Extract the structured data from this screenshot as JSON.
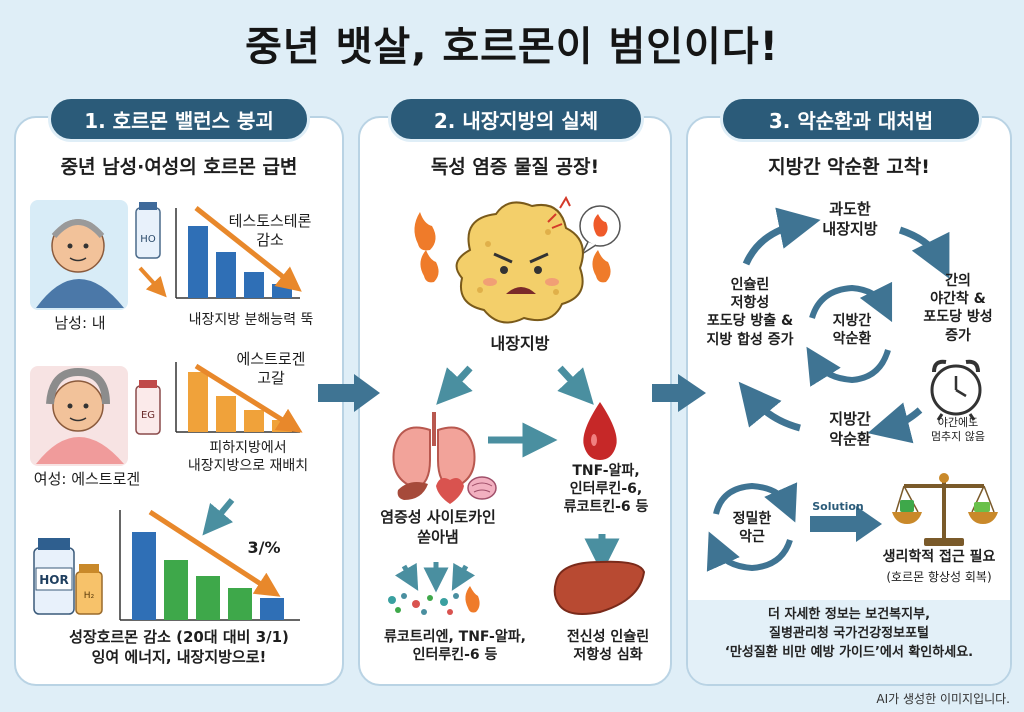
{
  "title": "중년 뱃살, 호르몬이 범인이다!",
  "panels": [
    {
      "tab": "1. 호르몬 밸런스 붕괴",
      "subtitle": "중년 남성·여성의 호르몬 급변",
      "male": {
        "bottle_label": "HO",
        "chart_label": "테스토스테론\n감소",
        "caption": "남성: 내",
        "chart_caption": "내장지방 분해능력 뚝"
      },
      "female": {
        "bottle_label": "EG",
        "chart_label": "에스트로겐\n고갈",
        "caption": "여성: 에스트로겐",
        "chart_caption": "피하지방에서\n내장지방으로 재배치"
      },
      "growth": {
        "bottle_label": "HOR",
        "small_bottle_label": "H₂",
        "ratio_label": "3/%",
        "caption": "성장호르몬 감소 (20대 대비 3/1)\n잉여 에너지, 내장지방으로!"
      }
    },
    {
      "tab": "2. 내장지방의 실체",
      "subtitle": "독성 염증 물질 공장!",
      "fat_label": "내장지방",
      "cytokine_label": "염증성 사이토카인\n쏟아냄",
      "molecules_label": "TNF-알파,\n인터루킨-6,\n류코트킨-6 등",
      "bottom_left": "류코트리엔, TNF-알파,\n인터루킨-6 등",
      "bottom_right": "전신성 인슐린\n저항성 심화"
    },
    {
      "tab": "3. 악순환과 대처법",
      "subtitle": "지방간 악순환 고착!",
      "cycle_top": "과도한\n내장지방",
      "cycle_right": "간의\n야간착 &\n포도당 방성\n증가",
      "cycle_left": "인슐린\n저항성\n포도당 방출 &\n지방 합성 증가",
      "cycle_center": "지방간\n악순환",
      "cycle_bottom": "지방간\n악순환",
      "clock_note": "야간에도\n멈추지 않음",
      "precision_label": "정밀한\n악근",
      "solution_label": "Solution",
      "approach_label": "생리학적 접근 필요",
      "approach_note": "(호르몬 항상성 회복)",
      "footer": "더 자세한 정보는 보건복지부,\n질병관리청 국가건강정보포털\n‘만성질환 비만 예방 가이드’에서 확인하세요."
    }
  ],
  "credit": "AI가 생성한 이미지입니다.",
  "colors": {
    "background": "#dfeef7",
    "tab": "#2b5b79",
    "arrow": "#3f7493",
    "trend_arrow": "#e8882b",
    "bar_blue": "#2f6fb6",
    "bar_green": "#3ea84a",
    "bar_orange": "#f0a23a",
    "fat_yellow": "#f3cf6a",
    "organ_red": "#d9534f"
  }
}
